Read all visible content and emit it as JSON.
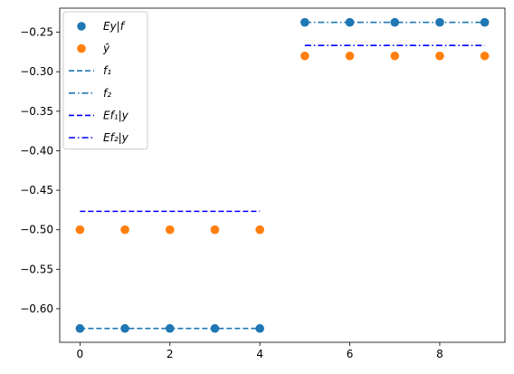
{
  "chart_data": {
    "type": "scatter",
    "xlim": [
      -0.45,
      9.45
    ],
    "ylim": [
      -0.6425,
      -0.2195
    ],
    "x_ticks": [
      0,
      2,
      4,
      6,
      8
    ],
    "x_tick_labels": [
      "0",
      "2",
      "4",
      "6",
      "8"
    ],
    "y_ticks": [
      -0.6,
      -0.55,
      -0.5,
      -0.45,
      -0.4,
      -0.35,
      -0.3,
      -0.25
    ],
    "y_tick_labels": [
      "−0.60",
      "−0.55",
      "−0.50",
      "−0.45",
      "−0.40",
      "−0.35",
      "−0.30",
      "−0.25"
    ],
    "grid": false,
    "legend_position": "upper-left",
    "series": [
      {
        "name": "Ey|f",
        "kind": "scatter",
        "color": "#1f77b4",
        "x": [
          0,
          1,
          2,
          3,
          4,
          5,
          6,
          7,
          8,
          9
        ],
        "y": [
          -0.625,
          -0.625,
          -0.625,
          -0.625,
          -0.625,
          -0.2375,
          -0.2375,
          -0.2375,
          -0.2375,
          -0.2375
        ]
      },
      {
        "name": "ŷ",
        "kind": "scatter",
        "color": "#ff7f0e",
        "x": [
          0,
          1,
          2,
          3,
          4,
          5,
          6,
          7,
          8,
          9
        ],
        "y": [
          -0.5,
          -0.5,
          -0.5,
          -0.5,
          -0.5,
          -0.28,
          -0.28,
          -0.28,
          -0.28,
          -0.28
        ]
      },
      {
        "name": "f1",
        "kind": "line",
        "dash": "dashed",
        "color": "#1f77b4",
        "x": [
          0,
          4
        ],
        "y": [
          -0.625,
          -0.625
        ]
      },
      {
        "name": "f2",
        "kind": "line",
        "dash": "dashdot",
        "color": "#1f77b4",
        "x": [
          5,
          9
        ],
        "y": [
          -0.2375,
          -0.2375
        ]
      },
      {
        "name": "Ef1|y",
        "kind": "line",
        "dash": "dashed",
        "color": "#0000ff",
        "x": [
          0,
          4
        ],
        "y": [
          -0.4767,
          -0.4767
        ]
      },
      {
        "name": "Ef2|y",
        "kind": "line",
        "dash": "dashdot",
        "color": "#0000ff",
        "x": [
          5,
          9
        ],
        "y": [
          -0.2667,
          -0.2667
        ]
      }
    ],
    "legend": [
      {
        "symbol": "dot",
        "color": "#1f77b4",
        "label": "Ey|f"
      },
      {
        "symbol": "dot",
        "color": "#ff7f0e",
        "label": "ŷ"
      },
      {
        "symbol": "dashed",
        "color": "#1f77b4",
        "label": "f₁"
      },
      {
        "symbol": "dashdot",
        "color": "#1f77b4",
        "label": "f₂"
      },
      {
        "symbol": "dashed",
        "color": "#0000ff",
        "label": "Ef₁|y"
      },
      {
        "symbol": "dashdot",
        "color": "#0000ff",
        "label": "Ef₂|y"
      }
    ]
  }
}
